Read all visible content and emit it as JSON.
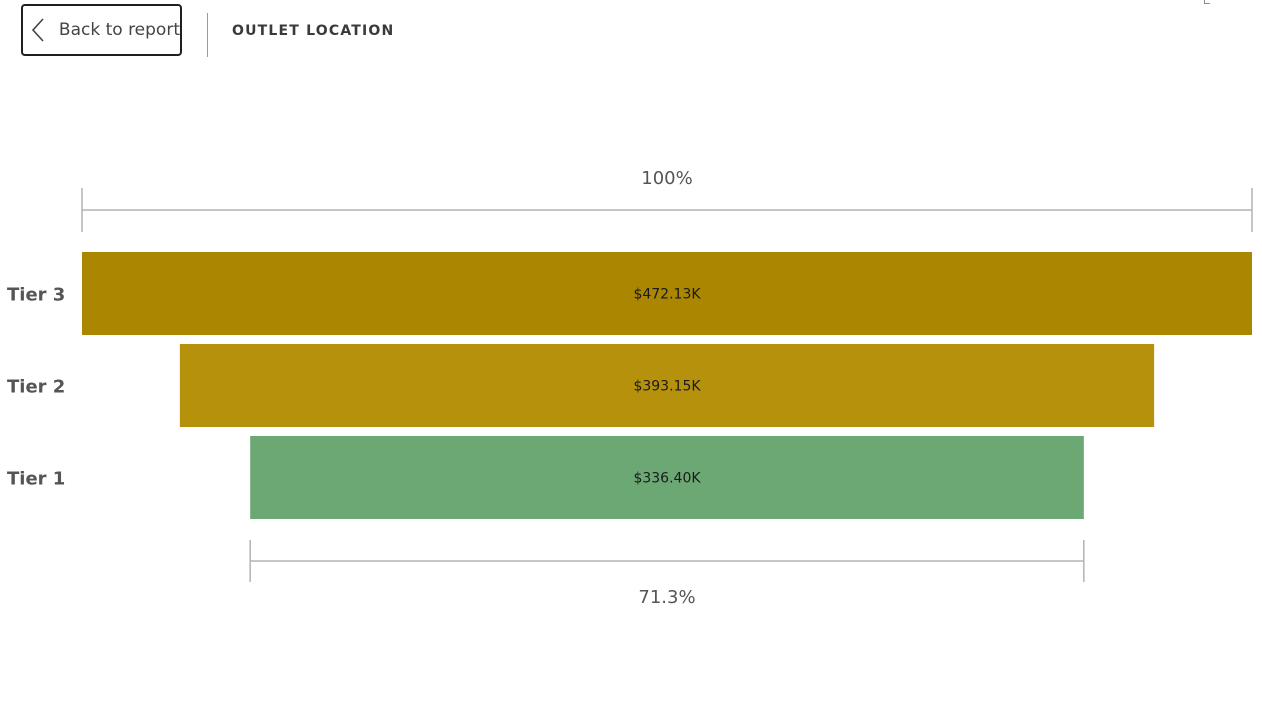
{
  "header": {
    "back_label": "Back to report",
    "title": "OUTLET LOCATION"
  },
  "icons": {
    "back": "chevron-left-icon"
  },
  "chart_data": {
    "type": "funnel",
    "categories": [
      "Tier 3",
      "Tier 2",
      "Tier 1"
    ],
    "values": [
      472.13,
      393.15,
      336.4
    ],
    "value_labels": [
      "$472.13K",
      "$393.15K",
      "$336.40K"
    ],
    "unit": "$K",
    "colors": [
      "#ab8600",
      "#b6920c",
      "#6ba874"
    ],
    "top_percent_label": "100%",
    "bottom_percent_label": "71.3%",
    "bracket_color": "#b3b3b3"
  }
}
